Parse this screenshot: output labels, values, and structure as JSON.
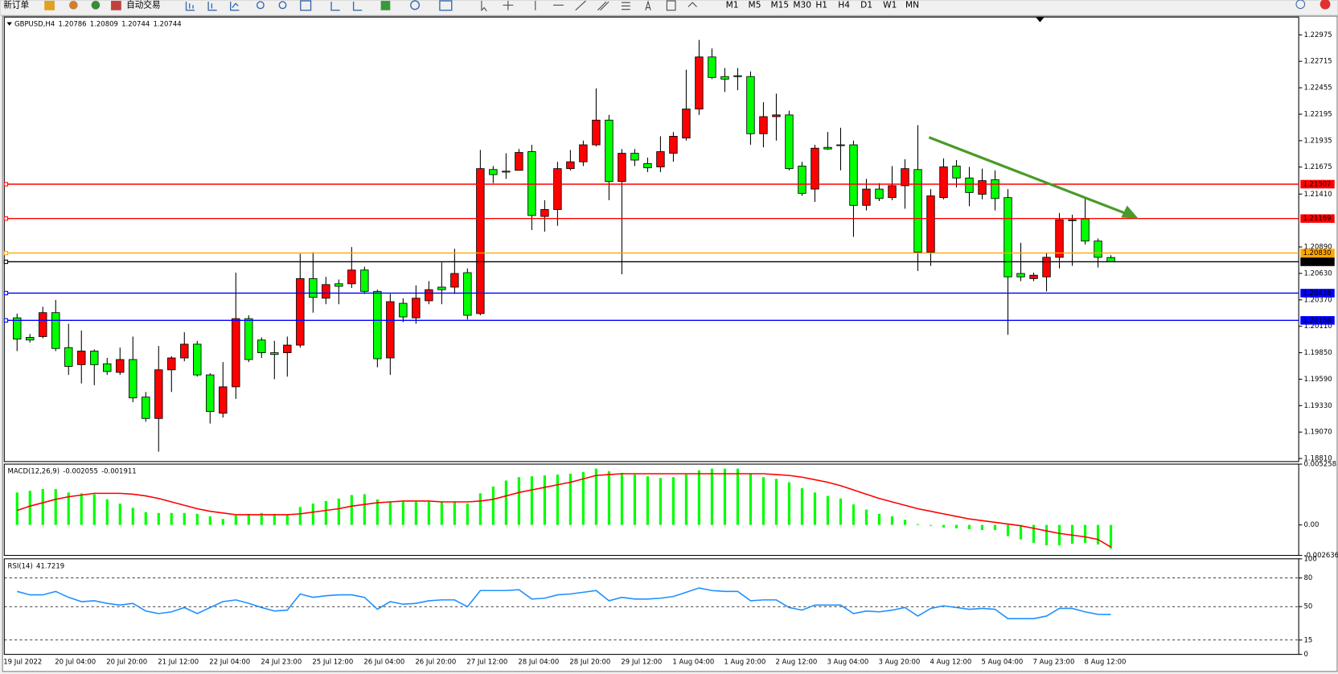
{
  "toolbar": {
    "new_order": "新订单",
    "auto_trade": "自动交易",
    "timeframes": [
      "M1",
      "M5",
      "M15",
      "M30",
      "H1",
      "H4",
      "D1",
      "W1",
      "MN"
    ]
  },
  "chart_data": [
    {
      "type": "candlestick",
      "title": "GBPUSD,H4",
      "up_color": "#ff0000",
      "down_color": "#00ff00",
      "categories": [
        "19 Jul 2022",
        null,
        null,
        null,
        "20 Jul 04:00",
        null,
        null,
        null,
        "20 Jul 20:00",
        null,
        null,
        null,
        "21 Jul 12:00",
        null,
        null,
        null,
        "22 Jul 04:00",
        null,
        null,
        null,
        "24 Jul 23:00",
        null,
        null,
        null,
        "25 Jul 12:00",
        null,
        null,
        null,
        "26 Jul 04:00",
        null,
        null,
        null,
        "26 Jul 20:00",
        null,
        null,
        null,
        "27 Jul 12:00",
        null,
        null,
        null,
        "28 Jul 04:00",
        null,
        null,
        null,
        "28 Jul 20:00",
        null,
        null,
        null,
        "29 Jul 12:00",
        null,
        null,
        null,
        "1 Aug 04:00",
        null,
        null,
        null,
        "1 Aug 20:00",
        null,
        null,
        null,
        "2 Aug 12:00",
        null,
        null,
        null,
        "3 Aug 04:00",
        null,
        null,
        null,
        "3 Aug 20:00",
        null,
        null,
        null,
        "4 Aug 12:00",
        null,
        null,
        null,
        "5 Aug 04:00",
        null,
        null,
        null,
        "7 Aug 23:00",
        null,
        null,
        null,
        "8 Aug 12:00",
        null
      ],
      "open": [
        1.20193,
        1.20001,
        1.20009,
        1.20244,
        1.199,
        1.19733,
        1.19866,
        1.19741,
        1.19657,
        1.19783,
        1.19414,
        1.19204,
        1.19682,
        1.19799,
        1.19934,
        1.19632,
        1.19255,
        1.19515,
        1.20185,
        1.19975,
        1.1985,
        1.1985,
        1.19925,
        1.20579,
        1.20386,
        1.20528,
        1.20528,
        1.20663,
        1.20453,
        1.19799,
        1.20336,
        1.20193,
        1.20361,
        1.20495,
        1.20495,
        1.20637,
        1.20235,
        1.21651,
        1.21635,
        1.21643,
        1.21827,
        1.2119,
        1.21258,
        1.2166,
        1.21727,
        1.21894,
        1.22137,
        1.21534,
        1.21811,
        1.2171,
        1.21677,
        1.21811,
        1.21961,
        1.22246,
        1.22758,
        1.22565,
        1.22573,
        1.22565,
        1.22003,
        1.22171,
        1.22188,
        1.21685,
        1.21459,
        1.21869,
        1.21894,
        1.21894,
        1.21299,
        1.21459,
        1.21375,
        1.21492,
        1.21651,
        1.20839,
        1.21375,
        1.21685,
        1.21568,
        1.21408,
        1.21551,
        1.21375,
        1.20629,
        1.20579,
        1.20596,
        1.20788,
        1.21157,
        1.21165,
        1.20948,
        1.20786
      ],
      "high": [
        1.20235,
        1.20034,
        1.20302,
        1.20369,
        1.20135,
        1.20068,
        1.19883,
        1.19799,
        1.199,
        1.20009,
        1.19464,
        1.19917,
        1.19816,
        1.20051,
        1.19967,
        1.19649,
        1.19758,
        1.20637,
        1.20218,
        1.20001,
        1.19967,
        1.20009,
        1.20822,
        1.20839,
        1.20596,
        1.2057,
        1.20889,
        1.20696,
        1.2047,
        1.20428,
        1.20386,
        1.20512,
        1.20554,
        1.20738,
        1.20872,
        1.20679,
        1.21844,
        1.21685,
        1.21811,
        1.21853,
        1.21894,
        1.2135,
        1.21727,
        1.21844,
        1.21936,
        1.22448,
        1.22188,
        1.21853,
        1.21853,
        1.21769,
        1.21978,
        1.2202,
        1.22632,
        1.22925,
        1.22841,
        1.22649,
        1.22649,
        1.22615,
        1.22313,
        1.22397,
        1.2223,
        1.21727,
        1.21894,
        1.2202,
        1.22062,
        1.21936,
        1.21559,
        1.21517,
        1.21685,
        1.21752,
        1.22087,
        1.21459,
        1.2176,
        1.21744,
        1.21677,
        1.2166,
        1.21643,
        1.21459,
        1.20931,
        1.20637,
        1.2083,
        1.21224,
        1.21207,
        1.21375,
        1.20973,
        1.20809
      ],
      "low": [
        1.19866,
        1.1995,
        1.19992,
        1.19866,
        1.19632,
        1.19548,
        1.19531,
        1.19632,
        1.19632,
        1.19364,
        1.19171,
        1.18878,
        1.19464,
        1.19766,
        1.19615,
        1.19154,
        1.19213,
        1.19397,
        1.19758,
        1.19799,
        1.1959,
        1.19615,
        1.199,
        1.20244,
        1.20327,
        1.20327,
        1.20487,
        1.20428,
        1.19707,
        1.19632,
        1.20151,
        1.20135,
        1.20327,
        1.20327,
        1.20428,
        1.20177,
        1.20218,
        1.21517,
        1.21559,
        1.21643,
        1.21056,
        1.2104,
        1.21098,
        1.21643,
        1.21685,
        1.21878,
        1.2135,
        1.20621,
        1.21685,
        1.21626,
        1.21626,
        1.21727,
        1.21936,
        1.22188,
        1.2254,
        1.22414,
        1.22431,
        1.21894,
        1.21869,
        1.21936,
        1.21643,
        1.21392,
        1.21333,
        1.21844,
        1.21643,
        1.20989,
        1.21249,
        1.21341,
        1.2135,
        1.21266,
        1.20654,
        1.20704,
        1.21358,
        1.21475,
        1.21291,
        1.21358,
        1.21249,
        1.20026,
        1.20554,
        1.20554,
        1.20453,
        1.20679,
        1.20704,
        1.20914,
        1.20688,
        1.20744
      ],
      "close": [
        1.19984,
        1.19975,
        1.20244,
        1.19892,
        1.19716,
        1.19866,
        1.19733,
        1.19665,
        1.19783,
        1.19406,
        1.19204,
        1.19682,
        1.19799,
        1.19934,
        1.19632,
        1.19272,
        1.19515,
        1.20185,
        1.19783,
        1.1985,
        1.19833,
        1.19925,
        1.20579,
        1.20394,
        1.2052,
        1.20503,
        1.20663,
        1.20453,
        1.19791,
        1.20352,
        1.20202,
        1.20386,
        1.2047,
        1.2047,
        1.20629,
        1.20218,
        1.2166,
        1.21601,
        1.21626,
        1.21819,
        1.21199,
        1.21258,
        1.2166,
        1.21727,
        1.21894,
        1.22137,
        1.21534,
        1.21811,
        1.21744,
        1.21668,
        1.21827,
        1.21978,
        1.22246,
        1.22758,
        1.22556,
        1.2254,
        1.22565,
        1.22003,
        1.22171,
        1.22188,
        1.2166,
        1.21417,
        1.21861,
        1.21853,
        1.21886,
        1.21299,
        1.21459,
        1.21366,
        1.21492,
        1.2166,
        1.20839,
        1.21392,
        1.21677,
        1.21568,
        1.21425,
        1.21542,
        1.21366,
        1.20596,
        1.20596,
        1.20612,
        1.20788,
        1.21157,
        1.21149,
        1.20948,
        1.20788,
        1.20744
      ],
      "ylim": [
        1.1878,
        1.2315
      ],
      "yticks": [
        1.22975,
        1.22715,
        1.22455,
        1.22195,
        1.21935,
        1.21675,
        {
          "value": 1.2141,
          "label": "1.21410"
        },
        {
          "value": 1.2089,
          "label": "1.20890"
        },
        {
          "value": 1.2063,
          "label": "1.20630"
        },
        {
          "value": 1.2037,
          "label": "1.20370"
        },
        {
          "value": 1.2011,
          "label": "1.20110"
        },
        {
          "value": 1.1985,
          "label": "1.19850"
        },
        {
          "value": 1.1959,
          "label": "1.19590"
        },
        {
          "value": 1.1933,
          "label": "1.19330"
        },
        {
          "value": 1.1907,
          "label": "1.19070"
        },
        {
          "value": 1.1881,
          "label": "1.18810"
        }
      ],
      "levels": [
        {
          "value": 1.21507,
          "color": "#ff0000"
        },
        {
          "value": 1.21169,
          "color": "#ff0000"
        },
        {
          "value": 1.2083,
          "label": "1.20830",
          "color": "#ffa500"
        },
        {
          "value": 1.20436,
          "color": "#0000ff"
        },
        {
          "value": 1.20168,
          "color": "#0000ff"
        }
      ],
      "price_line_color": "#000000"
    },
    {
      "type": "macd",
      "title": "MACD(12,26,9)",
      "color": "#00ff00",
      "signal_color": "#ff0000",
      "values": [
        0.002804,
        0.002952,
        0.0031,
        0.0031,
        0.002804,
        0.002731,
        0.002657,
        0.002214,
        0.001845,
        0.001476,
        0.001107,
        0.001033,
        0.001033,
        0.001033,
        0.000959,
        0.000738,
        0.000517,
        0.000812,
        0.000959,
        0.001033,
        0.000959,
        0.000886,
        0.00155,
        0.001845,
        0.002066,
        0.002288,
        0.002583,
        0.002657,
        0.002214,
        0.001993,
        0.001993,
        0.001993,
        0.001993,
        0.001993,
        0.001993,
        0.001845,
        0.002731,
        0.003321,
        0.003838,
        0.004133,
        0.004207,
        0.00428,
        0.004354,
        0.004428,
        0.004576,
        0.004871,
        0.004649,
        0.004502,
        0.004354,
        0.004207,
        0.004059,
        0.004133,
        0.004354,
        0.004723,
        0.004871,
        0.004871,
        0.004871,
        0.004428,
        0.004133,
        0.003985,
        0.00369,
        0.003173,
        0.002804,
        0.002509,
        0.002288,
        0.001771,
        0.001328,
        0.000959,
        0.000738,
        0.000443,
        7.4e-05,
        -7.4e-05,
        -0.000221,
        -0.000295,
        -0.000369,
        -0.000443,
        -0.000443,
        -0.000959,
        -0.001255,
        -0.00155,
        -0.001771,
        -0.001771,
        -0.001624,
        -0.00155,
        -0.001697,
        -0.002055
      ],
      "signal": [
        0.001255,
        0.001624,
        0.001919,
        0.002214,
        0.002435,
        0.002583,
        0.002731,
        0.002731,
        0.002731,
        0.002657,
        0.002509,
        0.002288,
        0.001993,
        0.001697,
        0.001402,
        0.001181,
        0.001033,
        0.000886,
        0.000886,
        0.000886,
        0.000886,
        0.000886,
        0.000959,
        0.001107,
        0.001255,
        0.001402,
        0.001624,
        0.001771,
        0.001919,
        0.001993,
        0.002066,
        0.002066,
        0.002066,
        0.001993,
        0.001993,
        0.001993,
        0.002066,
        0.002214,
        0.002509,
        0.002804,
        0.003026,
        0.003247,
        0.003469,
        0.00369,
        0.003985,
        0.00428,
        0.004354,
        0.004428,
        0.004428,
        0.004428,
        0.004428,
        0.004428,
        0.004428,
        0.004428,
        0.004428,
        0.004428,
        0.004428,
        0.004428,
        0.004428,
        0.004354,
        0.00428,
        0.004133,
        0.003911,
        0.00369,
        0.003395,
        0.003026,
        0.002657,
        0.002288,
        0.001993,
        0.001697,
        0.001402,
        0.001181,
        0.000959,
        0.000738,
        0.000517,
        0.000369,
        0.000221,
        7.4e-05,
        -7.4e-05,
        -0.000295,
        -0.000517,
        -0.000738,
        -0.000886,
        -0.001033,
        -0.001255,
        -0.001911
      ],
      "ylim": [
        -0.002636,
        0.005258
      ],
      "yticks": [
        0.005258,
        {
          "value": 0,
          "label": "0.00"
        },
        -0.002636
      ]
    },
    {
      "type": "line",
      "title": "RSI(14)",
      "color": "#1e90ff",
      "grid": "dashed",
      "values": [
        65.9,
        62.3,
        62.3,
        65.9,
        59.7,
        55.2,
        56.1,
        53.4,
        51.6,
        53.4,
        45.4,
        42.7,
        44.5,
        49.0,
        42.7,
        49.0,
        55.2,
        57.0,
        53.4,
        49.0,
        45.4,
        46.3,
        63.2,
        59.7,
        61.4,
        62.3,
        62.3,
        59.7,
        47.2,
        55.2,
        52.5,
        53.4,
        56.1,
        57.0,
        57.0,
        49.9,
        66.8,
        66.8,
        66.8,
        67.7,
        57.9,
        58.8,
        62.3,
        63.2,
        65.0,
        66.8,
        56.1,
        59.7,
        57.9,
        57.9,
        58.8,
        60.6,
        65.0,
        69.5,
        66.8,
        65.9,
        65.9,
        56.1,
        57.0,
        57.0,
        49.0,
        46.3,
        51.6,
        51.6,
        51.6,
        42.7,
        45.4,
        44.5,
        46.3,
        49.0,
        40.1,
        48.1,
        50.8,
        49.0,
        47.2,
        48.1,
        47.2,
        37.4,
        37.4,
        37.4,
        40.1,
        48.1,
        48.1,
        44.5,
        41.9,
        41.7219
      ],
      "ylim": [
        0,
        100
      ],
      "yticks": [
        100,
        80,
        50,
        15,
        0
      ]
    }
  ]
}
